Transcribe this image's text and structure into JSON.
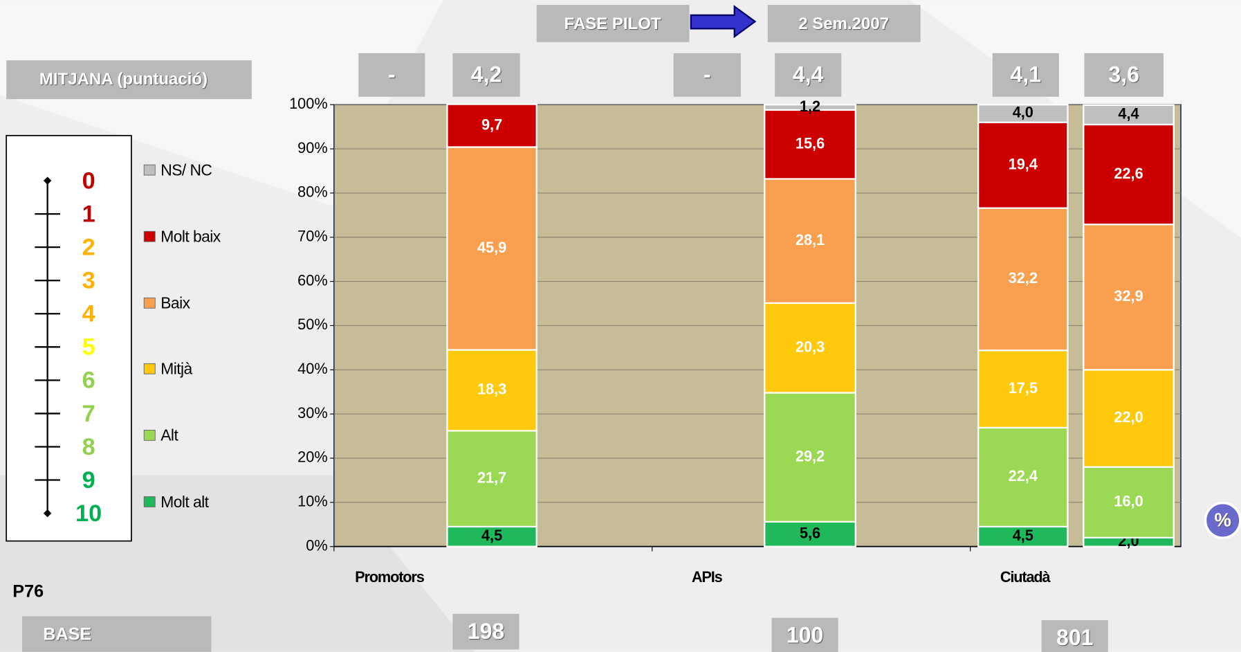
{
  "chart_data": {
    "type": "stacked_bar",
    "header": {
      "phase": "FASE PILOT",
      "period": "2 Sem.2007",
      "mean_title": "MITJANA (puntuació)"
    },
    "mean_labels": [
      "-",
      "4,2",
      "-",
      "4,4",
      "4,1",
      "3,6"
    ],
    "categories": [
      null,
      null,
      null,
      null
    ],
    "group_labels": [
      "Promotors",
      "APIs",
      "Ciutadà"
    ],
    "ylim": [
      0,
      100
    ],
    "yticks": [
      {
        "value": 0,
        "label": "0%"
      },
      {
        "value": 10,
        "label": "10%"
      },
      {
        "value": 20,
        "label": "20%"
      },
      {
        "value": 30,
        "label": "30%"
      },
      {
        "value": 40,
        "label": "40%"
      },
      {
        "value": 50,
        "label": "50%"
      },
      {
        "value": 60,
        "label": "60%"
      },
      {
        "value": 70,
        "label": "70%"
      },
      {
        "value": 80,
        "label": "80%"
      },
      {
        "value": 90,
        "label": "90%"
      },
      {
        "value": 100,
        "label": "100%"
      }
    ],
    "series": [
      {
        "name": "Molt alt",
        "color": "#1fb85a",
        "label_color": "#000000",
        "values": [
          4.5,
          5.6,
          4.5,
          2.0
        ],
        "value_labels": [
          "4,5",
          "5,6",
          "4,5",
          "2,0"
        ]
      },
      {
        "name": "Alt",
        "color": "#9bd955",
        "label_color": "#ffffff",
        "values": [
          21.7,
          29.2,
          22.4,
          16.0
        ],
        "value_labels": [
          "21,7",
          "29,2",
          "22,4",
          "16,0"
        ]
      },
      {
        "name": "Mitjà",
        "color": "#ffc90e",
        "label_color": "#ffffff",
        "values": [
          18.3,
          20.3,
          17.5,
          22.0
        ],
        "value_labels": [
          "18,3",
          "20,3",
          "17,5",
          "22,0"
        ]
      },
      {
        "name": "Baix",
        "color": "#f9a050",
        "label_color": "#ffffff",
        "values": [
          45.9,
          28.1,
          32.2,
          32.9
        ],
        "value_labels": [
          "45,9",
          "28,1",
          "32,2",
          "32,9"
        ]
      },
      {
        "name": "Molt baix",
        "color": "#cc0000",
        "label_color": "#ffffff",
        "values": [
          9.7,
          15.6,
          19.4,
          22.6
        ],
        "value_labels": [
          "9,7",
          "15,6",
          "19,4",
          "22,6"
        ]
      },
      {
        "name": "NS/ NC",
        "color": "#bfbfbf",
        "label_color": "#000000",
        "values": [
          null,
          1.2,
          4.0,
          4.4
        ],
        "value_labels": [
          null,
          "1,2",
          "4,0",
          "4,4"
        ]
      }
    ],
    "scale": {
      "labels": [
        0,
        1,
        2,
        3,
        4,
        5,
        6,
        7,
        8,
        9,
        10
      ],
      "colors": [
        "#c00000",
        "#c00000",
        "#ffb000",
        "#ffb000",
        "#ffb000",
        "#ffff00",
        "#92d050",
        "#92d050",
        "#92d050",
        "#00b050",
        "#00b050"
      ]
    },
    "question": "P76",
    "base_title": "BASE",
    "base_values": [
      198,
      100,
      801
    ],
    "icon_label": "%"
  }
}
